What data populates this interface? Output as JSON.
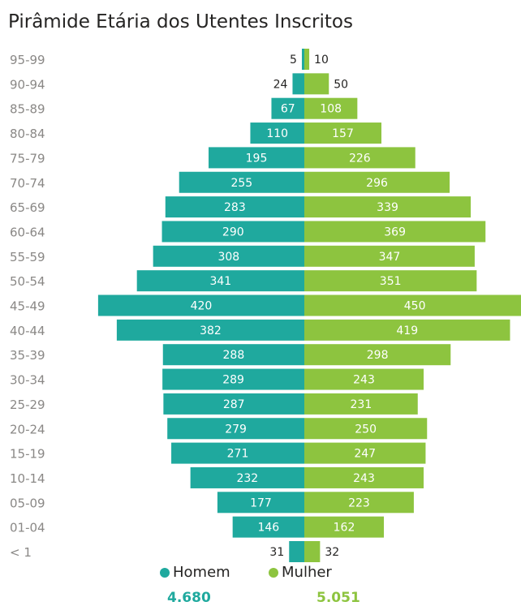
{
  "title": "Pirâmide Etária dos Utentes Inscritos",
  "colors": {
    "homem": "#1fa99e",
    "mulher": "#8dc43f",
    "axis_label": "#8a8886",
    "value_dark": "#252423",
    "value_light": "#ffffff"
  },
  "legend": {
    "homem": {
      "label": "Homem",
      "total": "4.680"
    },
    "mulher": {
      "label": "Mulher",
      "total": "5.051"
    }
  },
  "chart_data": {
    "type": "bar",
    "orientation": "horizontal-diverging",
    "title": "Pirâmide Etária dos Utentes Inscritos",
    "categories": [
      "95-99",
      "90-94",
      "85-89",
      "80-84",
      "75-79",
      "70-74",
      "65-69",
      "60-64",
      "55-59",
      "50-54",
      "45-49",
      "40-44",
      "35-39",
      "30-34",
      "25-29",
      "20-24",
      "15-19",
      "10-14",
      "05-09",
      "01-04",
      "< 1"
    ],
    "series": [
      {
        "name": "Homem",
        "values": [
          5,
          24,
          67,
          110,
          195,
          255,
          283,
          290,
          308,
          341,
          420,
          382,
          288,
          289,
          287,
          279,
          271,
          232,
          177,
          146,
          31
        ]
      },
      {
        "name": "Mulher",
        "values": [
          10,
          50,
          108,
          157,
          226,
          296,
          339,
          369,
          347,
          351,
          450,
          419,
          298,
          243,
          231,
          250,
          247,
          243,
          223,
          162,
          32
        ]
      }
    ],
    "legend_position": "bottom"
  }
}
